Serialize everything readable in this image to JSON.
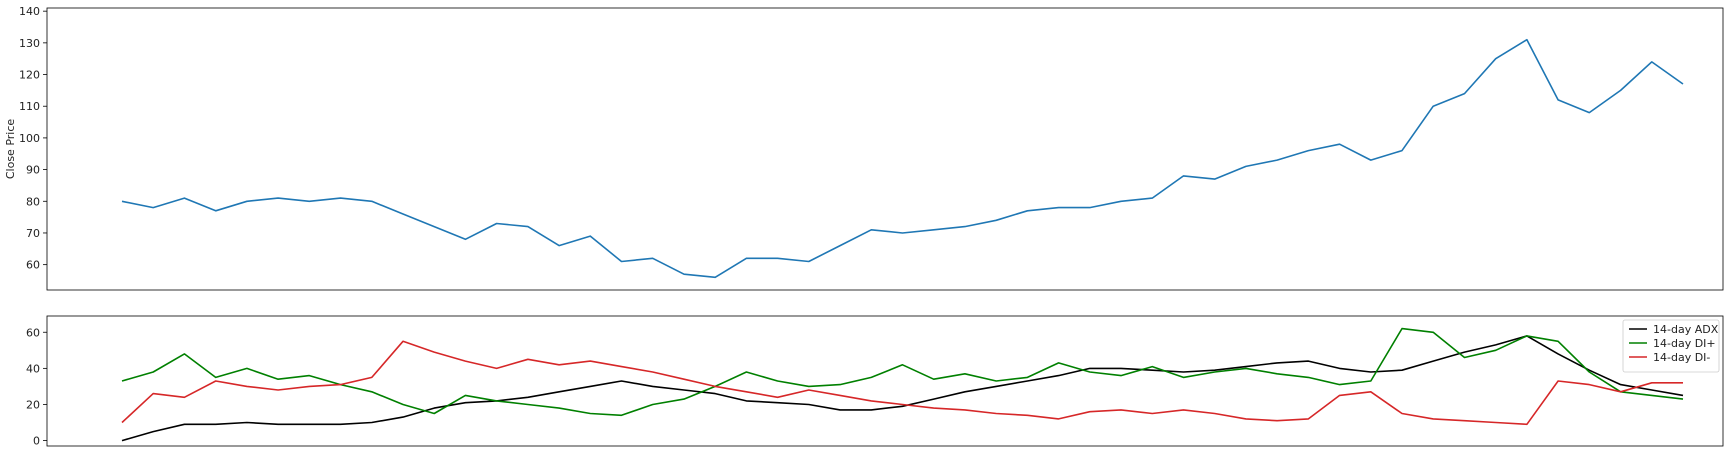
{
  "chart_data": [
    {
      "type": "line",
      "ylabel": "Close Price",
      "ylim": [
        52,
        141
      ],
      "yticks": [
        60,
        70,
        80,
        90,
        100,
        110,
        120,
        130,
        140
      ],
      "grid": false,
      "series": [
        {
          "color": "#1f77b4",
          "x": [
            0,
            5,
            10,
            15,
            20,
            25,
            30,
            35,
            40,
            45,
            50,
            55,
            60,
            65,
            70,
            75,
            80,
            85,
            90,
            95,
            100,
            105,
            110,
            115,
            120,
            125,
            130,
            135,
            140,
            145,
            150,
            155,
            160,
            165,
            170,
            175,
            180,
            185,
            190,
            195,
            200,
            205,
            210,
            215,
            220,
            225,
            230,
            235,
            240,
            245,
            250
          ],
          "values": [
            80,
            78,
            81,
            77,
            80,
            81,
            80,
            81,
            80,
            76,
            72,
            68,
            73,
            72,
            66,
            69,
            61,
            62,
            57,
            56,
            62,
            62,
            61,
            66,
            71,
            70,
            71,
            72,
            74,
            77,
            78,
            78,
            80,
            81,
            88,
            87,
            91,
            93,
            96,
            98,
            93,
            96,
            110,
            114,
            125,
            131,
            112,
            108,
            115,
            124,
            117
          ]
        }
      ]
    },
    {
      "type": "line",
      "ylim": [
        -3,
        69
      ],
      "yticks": [
        0,
        20,
        40,
        60
      ],
      "grid": false,
      "legend_position": "top-right",
      "series": [
        {
          "name": "14-day ADX",
          "color": "#000000",
          "x": [
            0,
            5,
            10,
            15,
            20,
            25,
            30,
            35,
            40,
            45,
            50,
            55,
            60,
            65,
            70,
            75,
            80,
            85,
            90,
            95,
            100,
            105,
            110,
            115,
            120,
            125,
            130,
            135,
            140,
            145,
            150,
            155,
            160,
            165,
            170,
            175,
            180,
            185,
            190,
            195,
            200,
            205,
            210,
            215,
            220,
            225,
            230,
            235,
            240,
            245,
            250
          ],
          "values": [
            0,
            5,
            9,
            9,
            10,
            9,
            9,
            9,
            10,
            13,
            18,
            21,
            22,
            24,
            27,
            30,
            33,
            30,
            28,
            26,
            22,
            21,
            20,
            17,
            17,
            19,
            23,
            27,
            30,
            33,
            36,
            40,
            40,
            39,
            38,
            39,
            41,
            43,
            44,
            40,
            38,
            39,
            44,
            49,
            53,
            58,
            48,
            39,
            31,
            28,
            25
          ]
        },
        {
          "name": "14-day DI+",
          "color": "#008000",
          "x": [
            0,
            5,
            10,
            15,
            20,
            25,
            30,
            35,
            40,
            45,
            50,
            55,
            60,
            65,
            70,
            75,
            80,
            85,
            90,
            95,
            100,
            105,
            110,
            115,
            120,
            125,
            130,
            135,
            140,
            145,
            150,
            155,
            160,
            165,
            170,
            175,
            180,
            185,
            190,
            195,
            200,
            205,
            210,
            215,
            220,
            225,
            230,
            235,
            240,
            245,
            250
          ],
          "values": [
            33,
            38,
            48,
            35,
            40,
            34,
            36,
            31,
            27,
            20,
            15,
            25,
            22,
            20,
            18,
            15,
            14,
            20,
            23,
            30,
            38,
            33,
            30,
            31,
            35,
            42,
            34,
            37,
            33,
            35,
            43,
            38,
            36,
            41,
            35,
            38,
            40,
            37,
            35,
            31,
            33,
            62,
            60,
            46,
            50,
            58,
            55,
            38,
            27,
            25,
            23
          ]
        },
        {
          "name": "14-day DI-",
          "color": "#d62728",
          "x": [
            0,
            5,
            10,
            15,
            20,
            25,
            30,
            35,
            40,
            45,
            50,
            55,
            60,
            65,
            70,
            75,
            80,
            85,
            90,
            95,
            100,
            105,
            110,
            115,
            120,
            125,
            130,
            135,
            140,
            145,
            150,
            155,
            160,
            165,
            170,
            175,
            180,
            185,
            190,
            195,
            200,
            205,
            210,
            215,
            220,
            225,
            230,
            235,
            240,
            245,
            250
          ],
          "values": [
            10,
            26,
            24,
            33,
            30,
            28,
            30,
            31,
            35,
            55,
            49,
            44,
            40,
            45,
            42,
            44,
            41,
            38,
            34,
            30,
            27,
            24,
            28,
            25,
            22,
            20,
            18,
            17,
            15,
            14,
            12,
            16,
            17,
            15,
            17,
            15,
            12,
            11,
            12,
            25,
            27,
            15,
            12,
            11,
            10,
            9,
            33,
            31,
            27,
            32,
            32
          ]
        }
      ]
    }
  ]
}
